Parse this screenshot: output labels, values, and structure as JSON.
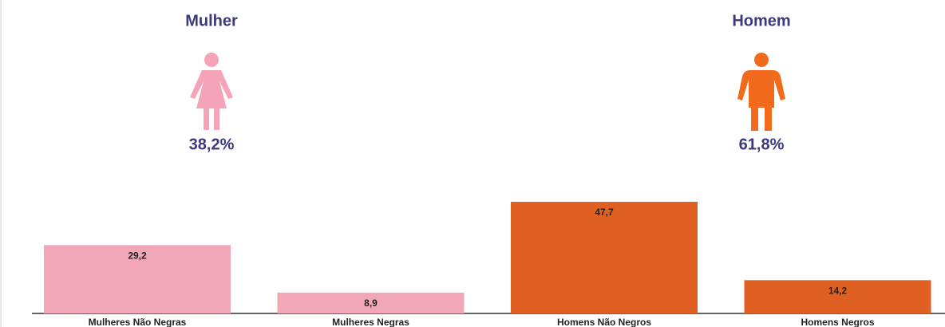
{
  "chart_data": {
    "type": "bar",
    "categories": [
      "Mulheres Não Negras",
      "Mulheres Negras",
      "Homens Não Negros",
      "Homens Negros"
    ],
    "values": [
      29.2,
      8.9,
      47.7,
      14.2
    ],
    "value_labels": [
      "29,2",
      "8,9",
      "47,7",
      "14,2"
    ],
    "colors": [
      "#f2a7b9",
      "#f2a7b9",
      "#e06024",
      "#e06024"
    ],
    "groups": [
      {
        "name": "Mulher",
        "value": 38.2,
        "value_label": "38,2%",
        "color": "#f5a3b8"
      },
      {
        "name": "Homem",
        "value": 61.8,
        "value_label": "61,8%",
        "color": "#f26a1b"
      }
    ]
  }
}
